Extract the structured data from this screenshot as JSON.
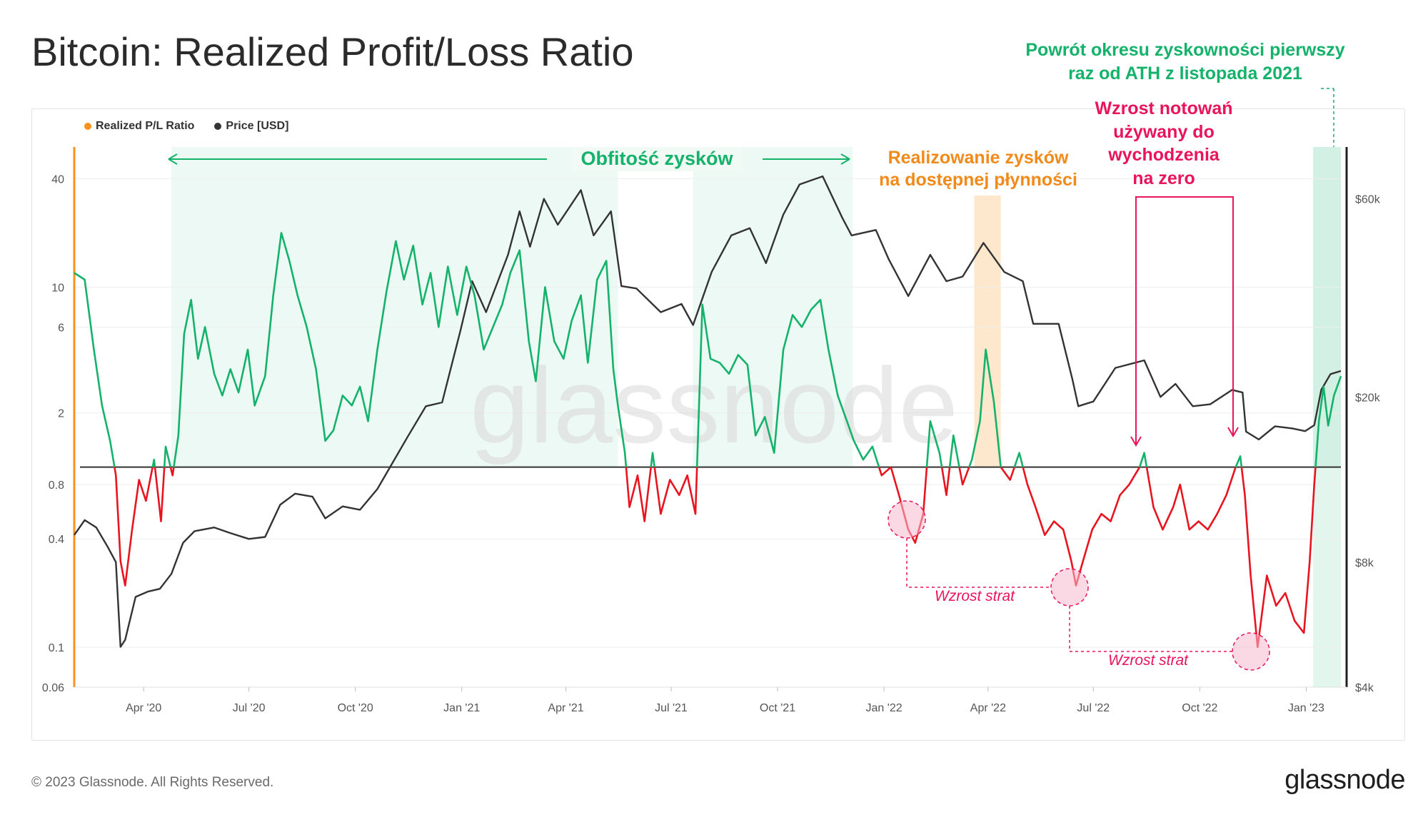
{
  "title": "Bitcoin: Realized Profit/Loss Ratio",
  "legend": {
    "ratio_label": "Realized P/L Ratio",
    "price_label": "Price [USD]"
  },
  "colors": {
    "ratio_dot": "#f7931a",
    "price_dot": "#333333",
    "profit": "#14b26a",
    "loss": "#e8141f",
    "price": "#333333",
    "annotation_green": "#14b26a",
    "annotation_orange": "#f28a1a",
    "annotation_pink": "#e8145c"
  },
  "annotations": {
    "profit_abundance": "Obfitość zysków",
    "profit_taking_line1": "Realizowanie zysków",
    "profit_taking_line2": "na dostępnej płynności",
    "rally_line1": "Wzrost notowań",
    "rally_line2": "używany do",
    "rally_line3": "wychodzenia",
    "rally_line4": "na zero",
    "return_line1": "Powrót okresu zyskowności pierwszy",
    "return_line2": "raz od ATH z listopada 2021",
    "loss_increase_1": "Wzrost strat",
    "loss_increase_2": "Wzrost strat"
  },
  "watermark": "glassnode",
  "footer": {
    "copyright": "© 2023 Glassnode. All Rights Reserved.",
    "logo": "glassnode"
  },
  "chart_data": {
    "type": "line",
    "x_ticks": [
      "Apr '20",
      "Jul '20",
      "Oct '20",
      "Jan '21",
      "Apr '21",
      "Jul '21",
      "Oct '21",
      "Jan '22",
      "Apr '22",
      "Jul '22",
      "Oct '22",
      "Jan '23"
    ],
    "x_range": [
      "2020-02-01",
      "2023-01-31"
    ],
    "left_axis": {
      "label": "",
      "scale": "log",
      "ticks": [
        "0.06",
        "0.1",
        "0.4",
        "0.8",
        "2",
        "6",
        "10",
        "40"
      ],
      "range": [
        0.06,
        60
      ],
      "reference_line": 1
    },
    "right_axis": {
      "label": "",
      "scale": "log",
      "ticks": [
        "$4k",
        "$8k",
        "$20k",
        "$60k"
      ],
      "range": [
        4000,
        80000
      ]
    },
    "grid": true,
    "legend_position": "top-left",
    "series": [
      {
        "name": "Realized P/L Ratio",
        "axis": "left",
        "color_above_1": "#14b26a",
        "color_below_1": "#e8141f",
        "points": [
          [
            "2020-02-01",
            12
          ],
          [
            "2020-02-10",
            11
          ],
          [
            "2020-02-18",
            4.5
          ],
          [
            "2020-02-25",
            2.2
          ],
          [
            "2020-03-03",
            1.4
          ],
          [
            "2020-03-08",
            0.9
          ],
          [
            "2020-03-12",
            0.3
          ],
          [
            "2020-03-16",
            0.22
          ],
          [
            "2020-03-22",
            0.45
          ],
          [
            "2020-03-28",
            0.85
          ],
          [
            "2020-04-03",
            0.65
          ],
          [
            "2020-04-10",
            1.1
          ],
          [
            "2020-04-16",
            0.5
          ],
          [
            "2020-04-20",
            1.3
          ],
          [
            "2020-04-26",
            0.9
          ],
          [
            "2020-05-01",
            1.5
          ],
          [
            "2020-05-06",
            5.5
          ],
          [
            "2020-05-12",
            8.5
          ],
          [
            "2020-05-18",
            4
          ],
          [
            "2020-05-24",
            6
          ],
          [
            "2020-06-01",
            3.3
          ],
          [
            "2020-06-08",
            2.5
          ],
          [
            "2020-06-15",
            3.5
          ],
          [
            "2020-06-22",
            2.6
          ],
          [
            "2020-06-30",
            4.5
          ],
          [
            "2020-07-06",
            2.2
          ],
          [
            "2020-07-15",
            3.2
          ],
          [
            "2020-07-22",
            9
          ],
          [
            "2020-07-29",
            20
          ],
          [
            "2020-08-05",
            14
          ],
          [
            "2020-08-12",
            9
          ],
          [
            "2020-08-20",
            6
          ],
          [
            "2020-08-28",
            3.5
          ],
          [
            "2020-09-05",
            1.4
          ],
          [
            "2020-09-12",
            1.6
          ],
          [
            "2020-09-20",
            2.5
          ],
          [
            "2020-09-28",
            2.2
          ],
          [
            "2020-10-05",
            2.8
          ],
          [
            "2020-10-12",
            1.8
          ],
          [
            "2020-10-20",
            4.5
          ],
          [
            "2020-10-28",
            9.5
          ],
          [
            "2020-11-05",
            18
          ],
          [
            "2020-11-12",
            11
          ],
          [
            "2020-11-20",
            17
          ],
          [
            "2020-11-28",
            8
          ],
          [
            "2020-12-05",
            12
          ],
          [
            "2020-12-12",
            6
          ],
          [
            "2020-12-20",
            13
          ],
          [
            "2020-12-28",
            7
          ],
          [
            "2021-01-05",
            13
          ],
          [
            "2021-01-12",
            9
          ],
          [
            "2021-01-20",
            4.5
          ],
          [
            "2021-01-28",
            6
          ],
          [
            "2021-02-05",
            8
          ],
          [
            "2021-02-12",
            12
          ],
          [
            "2021-02-20",
            16
          ],
          [
            "2021-02-28",
            5
          ],
          [
            "2021-03-06",
            3
          ],
          [
            "2021-03-14",
            10
          ],
          [
            "2021-03-22",
            5
          ],
          [
            "2021-03-30",
            4
          ],
          [
            "2021-04-06",
            6.5
          ],
          [
            "2021-04-14",
            9
          ],
          [
            "2021-04-20",
            3.8
          ],
          [
            "2021-04-28",
            11
          ],
          [
            "2021-05-06",
            14
          ],
          [
            "2021-05-12",
            3.5
          ],
          [
            "2021-05-16",
            2.2
          ],
          [
            "2021-05-22",
            1.2
          ],
          [
            "2021-05-26",
            0.6
          ],
          [
            "2021-06-02",
            0.9
          ],
          [
            "2021-06-08",
            0.5
          ],
          [
            "2021-06-15",
            1.2
          ],
          [
            "2021-06-22",
            0.55
          ],
          [
            "2021-06-30",
            0.85
          ],
          [
            "2021-07-08",
            0.7
          ],
          [
            "2021-07-15",
            0.9
          ],
          [
            "2021-07-22",
            0.55
          ],
          [
            "2021-07-28",
            8
          ],
          [
            "2021-08-04",
            4
          ],
          [
            "2021-08-12",
            3.8
          ],
          [
            "2021-08-20",
            3.3
          ],
          [
            "2021-08-28",
            4.2
          ],
          [
            "2021-09-05",
            3.7
          ],
          [
            "2021-09-12",
            1.5
          ],
          [
            "2021-09-20",
            1.9
          ],
          [
            "2021-09-28",
            1.2
          ],
          [
            "2021-10-06",
            4.5
          ],
          [
            "2021-10-14",
            7
          ],
          [
            "2021-10-22",
            6
          ],
          [
            "2021-10-30",
            7.5
          ],
          [
            "2021-11-07",
            8.5
          ],
          [
            "2021-11-14",
            4.5
          ],
          [
            "2021-11-22",
            2.5
          ],
          [
            "2021-11-30",
            1.8
          ],
          [
            "2021-12-06",
            1.4
          ],
          [
            "2021-12-14",
            1.1
          ],
          [
            "2021-12-22",
            1.3
          ],
          [
            "2021-12-30",
            0.9
          ],
          [
            "2022-01-07",
            1.0
          ],
          [
            "2022-01-14",
            0.7
          ],
          [
            "2022-01-22",
            0.45
          ],
          [
            "2022-01-28",
            0.38
          ],
          [
            "2022-02-04",
            0.55
          ],
          [
            "2022-02-10",
            1.8
          ],
          [
            "2022-02-18",
            1.2
          ],
          [
            "2022-02-24",
            0.7
          ],
          [
            "2022-03-02",
            1.5
          ],
          [
            "2022-03-10",
            0.8
          ],
          [
            "2022-03-18",
            1.1
          ],
          [
            "2022-03-25",
            1.8
          ],
          [
            "2022-03-30",
            4.5
          ],
          [
            "2022-04-06",
            2.3
          ],
          [
            "2022-04-12",
            1.0
          ],
          [
            "2022-04-20",
            0.85
          ],
          [
            "2022-04-28",
            1.2
          ],
          [
            "2022-05-05",
            0.8
          ],
          [
            "2022-05-12",
            0.6
          ],
          [
            "2022-05-20",
            0.42
          ],
          [
            "2022-05-28",
            0.5
          ],
          [
            "2022-06-05",
            0.45
          ],
          [
            "2022-06-12",
            0.3
          ],
          [
            "2022-06-16",
            0.22
          ],
          [
            "2022-06-22",
            0.3
          ],
          [
            "2022-06-30",
            0.45
          ],
          [
            "2022-07-08",
            0.55
          ],
          [
            "2022-07-16",
            0.5
          ],
          [
            "2022-07-24",
            0.7
          ],
          [
            "2022-08-01",
            0.8
          ],
          [
            "2022-08-10",
            1.0
          ],
          [
            "2022-08-14",
            1.2
          ],
          [
            "2022-08-22",
            0.6
          ],
          [
            "2022-08-30",
            0.45
          ],
          [
            "2022-09-08",
            0.6
          ],
          [
            "2022-09-14",
            0.8
          ],
          [
            "2022-09-22",
            0.45
          ],
          [
            "2022-09-30",
            0.5
          ],
          [
            "2022-10-08",
            0.45
          ],
          [
            "2022-10-16",
            0.55
          ],
          [
            "2022-10-24",
            0.7
          ],
          [
            "2022-11-01",
            1.0
          ],
          [
            "2022-11-05",
            1.15
          ],
          [
            "2022-11-09",
            0.7
          ],
          [
            "2022-11-14",
            0.25
          ],
          [
            "2022-11-20",
            0.1
          ],
          [
            "2022-11-28",
            0.25
          ],
          [
            "2022-12-06",
            0.17
          ],
          [
            "2022-12-14",
            0.2
          ],
          [
            "2022-12-22",
            0.14
          ],
          [
            "2022-12-30",
            0.12
          ],
          [
            "2023-01-04",
            0.3
          ],
          [
            "2023-01-08",
            0.8
          ],
          [
            "2023-01-12",
            1.8
          ],
          [
            "2023-01-16",
            2.8
          ],
          [
            "2023-01-20",
            1.7
          ],
          [
            "2023-01-25",
            2.5
          ],
          [
            "2023-01-31",
            3.2
          ]
        ]
      },
      {
        "name": "Price [USD]",
        "axis": "right",
        "color": "#333333",
        "points": [
          [
            "2020-02-01",
            9300
          ],
          [
            "2020-02-10",
            10100
          ],
          [
            "2020-02-20",
            9700
          ],
          [
            "2020-03-01",
            8700
          ],
          [
            "2020-03-08",
            8000
          ],
          [
            "2020-03-12",
            5000
          ],
          [
            "2020-03-16",
            5200
          ],
          [
            "2020-03-25",
            6600
          ],
          [
            "2020-04-05",
            6800
          ],
          [
            "2020-04-15",
            6900
          ],
          [
            "2020-04-25",
            7500
          ],
          [
            "2020-05-05",
            8900
          ],
          [
            "2020-05-15",
            9500
          ],
          [
            "2020-06-01",
            9700
          ],
          [
            "2020-06-15",
            9400
          ],
          [
            "2020-07-01",
            9100
          ],
          [
            "2020-07-15",
            9200
          ],
          [
            "2020-07-28",
            11000
          ],
          [
            "2020-08-10",
            11700
          ],
          [
            "2020-08-25",
            11500
          ],
          [
            "2020-09-05",
            10200
          ],
          [
            "2020-09-20",
            10900
          ],
          [
            "2020-10-05",
            10700
          ],
          [
            "2020-10-20",
            12000
          ],
          [
            "2020-11-01",
            13700
          ],
          [
            "2020-11-15",
            16000
          ],
          [
            "2020-12-01",
            19000
          ],
          [
            "2020-12-15",
            19400
          ],
          [
            "2020-12-31",
            29000
          ],
          [
            "2021-01-10",
            38000
          ],
          [
            "2021-01-22",
            32000
          ],
          [
            "2021-02-10",
            44000
          ],
          [
            "2021-02-20",
            56000
          ],
          [
            "2021-03-01",
            46000
          ],
          [
            "2021-03-13",
            60000
          ],
          [
            "2021-03-25",
            52000
          ],
          [
            "2021-04-14",
            63000
          ],
          [
            "2021-04-25",
            49000
          ],
          [
            "2021-05-10",
            56000
          ],
          [
            "2021-05-19",
            37000
          ],
          [
            "2021-06-01",
            36500
          ],
          [
            "2021-06-22",
            32000
          ],
          [
            "2021-07-10",
            33500
          ],
          [
            "2021-07-20",
            29800
          ],
          [
            "2021-08-05",
            40000
          ],
          [
            "2021-08-22",
            49000
          ],
          [
            "2021-09-07",
            51000
          ],
          [
            "2021-09-21",
            42000
          ],
          [
            "2021-10-06",
            55000
          ],
          [
            "2021-10-20",
            65000
          ],
          [
            "2021-11-09",
            68000
          ],
          [
            "2021-11-26",
            54000
          ],
          [
            "2021-12-04",
            49000
          ],
          [
            "2021-12-25",
            50500
          ],
          [
            "2022-01-05",
            43000
          ],
          [
            "2022-01-22",
            35000
          ],
          [
            "2022-02-10",
            44000
          ],
          [
            "2022-02-24",
            38000
          ],
          [
            "2022-03-10",
            39000
          ],
          [
            "2022-03-28",
            47000
          ],
          [
            "2022-04-15",
            40000
          ],
          [
            "2022-05-01",
            38000
          ],
          [
            "2022-05-10",
            30000
          ],
          [
            "2022-06-01",
            30000
          ],
          [
            "2022-06-13",
            22000
          ],
          [
            "2022-06-18",
            19000
          ],
          [
            "2022-07-01",
            19500
          ],
          [
            "2022-07-20",
            23500
          ],
          [
            "2022-08-14",
            24500
          ],
          [
            "2022-08-28",
            20000
          ],
          [
            "2022-09-10",
            21500
          ],
          [
            "2022-09-25",
            19000
          ],
          [
            "2022-10-10",
            19200
          ],
          [
            "2022-10-29",
            20800
          ],
          [
            "2022-11-07",
            20500
          ],
          [
            "2022-11-10",
            16500
          ],
          [
            "2022-11-21",
            15800
          ],
          [
            "2022-12-05",
            17000
          ],
          [
            "2022-12-20",
            16800
          ],
          [
            "2022-12-31",
            16550
          ],
          [
            "2023-01-08",
            17100
          ],
          [
            "2023-01-14",
            20800
          ],
          [
            "2023-01-22",
            22700
          ],
          [
            "2023-01-31",
            23100
          ]
        ]
      }
    ],
    "shaded_regions": [
      {
        "kind": "profit",
        "from": "2020-04-25",
        "to": "2021-05-16"
      },
      {
        "kind": "profit",
        "from": "2021-07-20",
        "to": "2021-12-05"
      },
      {
        "kind": "profit-taking",
        "from": "2022-03-20",
        "to": "2022-04-12"
      },
      {
        "kind": "profit",
        "from": "2023-01-07",
        "to": "2023-01-31"
      }
    ]
  }
}
